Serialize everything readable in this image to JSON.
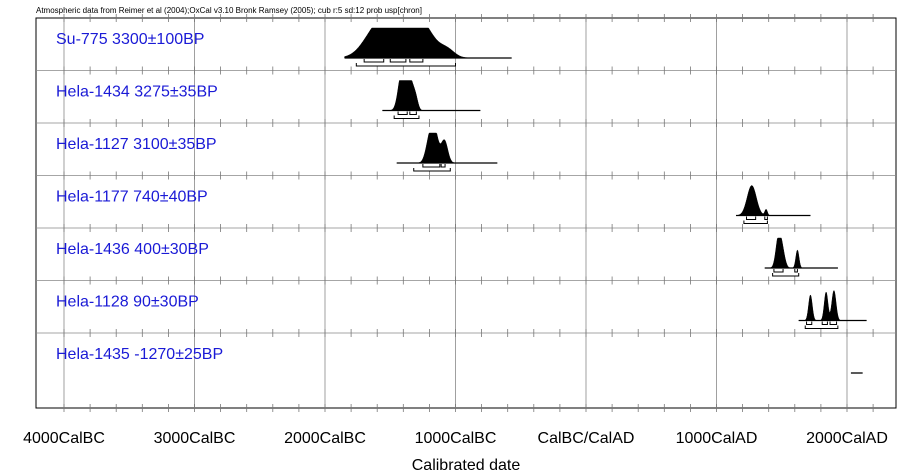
{
  "header": {
    "note": "Atmospheric data from Reimer et al (2004);OxCal v3.10 Bronk Ramsey (2005); cub r:5 sd:12 prob usp[chron]"
  },
  "chart_data": {
    "type": "multiplot",
    "title": "",
    "xlabel": "Calibrated date",
    "ylabel": "",
    "xlim": [
      -4000,
      2500
    ],
    "x_ticks": [
      {
        "value": -4000,
        "label": "4000CalBC"
      },
      {
        "value": -3000,
        "label": "3000CalBC"
      },
      {
        "value": -2000,
        "label": "2000CalBC"
      },
      {
        "value": -1000,
        "label": "1000CalBC"
      },
      {
        "value": 0,
        "label": "CalBC/CalAD"
      },
      {
        "value": 1000,
        "label": "1000CalAD"
      },
      {
        "value": 2000,
        "label": "2000CalAD"
      }
    ],
    "grid": true,
    "samples": [
      {
        "label": "Su-775  3300±100BP",
        "range": [
          -1850,
          -570
        ],
        "peaks": [
          {
            "center": -1630,
            "width": 95,
            "height": 0.5
          },
          {
            "center": -1500,
            "width": 120,
            "height": 0.75
          },
          {
            "center": -1400,
            "width": 120,
            "height": 1.0
          },
          {
            "center": -1250,
            "width": 100,
            "height": 0.75
          },
          {
            "center": -1060,
            "width": 55,
            "height": 0.22
          }
        ],
        "hpd_1sigma": [
          [
            -1700,
            -1550
          ],
          [
            -1500,
            -1380
          ],
          [
            -1350,
            -1250
          ]
        ],
        "hpd_2sigma": [
          [
            -1760,
            -1000
          ]
        ]
      },
      {
        "label": "Hela-1434  3275±35BP",
        "range": [
          -1560,
          -810
        ],
        "peaks": [
          {
            "center": -1420,
            "width": 25,
            "height": 0.55
          },
          {
            "center": -1395,
            "width": 30,
            "height": 1.0
          },
          {
            "center": -1345,
            "width": 25,
            "height": 0.85
          },
          {
            "center": -1305,
            "width": 18,
            "height": 0.35
          }
        ],
        "hpd_1sigma": [
          [
            -1440,
            -1370
          ],
          [
            -1350,
            -1300
          ]
        ],
        "hpd_2sigma": [
          [
            -1470,
            -1280
          ]
        ]
      },
      {
        "label": "Hela-1127  3100±35BP",
        "range": [
          -1450,
          -680
        ],
        "peaks": [
          {
            "center": -1200,
            "width": 28,
            "height": 0.7
          },
          {
            "center": -1160,
            "width": 28,
            "height": 1.0
          },
          {
            "center": -1085,
            "width": 25,
            "height": 0.75
          }
        ],
        "hpd_1sigma": [
          [
            -1250,
            -1120
          ],
          [
            -1110,
            -1080
          ]
        ],
        "hpd_2sigma": [
          [
            -1320,
            -1040
          ]
        ]
      },
      {
        "label": "Hela-1177  740±40BP",
        "range": [
          1150,
          1720
        ],
        "peaks": [
          {
            "center": 1270,
            "width": 35,
            "height": 1.0
          },
          {
            "center": 1380,
            "width": 10,
            "height": 0.2
          }
        ],
        "hpd_1sigma": [
          [
            1230,
            1300
          ],
          [
            1370,
            1390
          ]
        ],
        "hpd_2sigma": [
          [
            1210,
            1390
          ]
        ]
      },
      {
        "label": "Hela-1436  400±30BP",
        "range": [
          1370,
          1930
        ],
        "peaks": [
          {
            "center": 1475,
            "width": 20,
            "height": 1.0
          },
          {
            "center": 1505,
            "width": 20,
            "height": 0.5
          },
          {
            "center": 1620,
            "width": 12,
            "height": 0.6
          }
        ],
        "hpd_1sigma": [
          [
            1440,
            1510
          ],
          [
            1600,
            1620
          ]
        ],
        "hpd_2sigma": [
          [
            1430,
            1630
          ]
        ]
      },
      {
        "label": "Hela-1128  90±30BP",
        "range": [
          1630,
          2150
        ],
        "peaks": [
          {
            "center": 1720,
            "width": 14,
            "height": 0.85
          },
          {
            "center": 1840,
            "width": 14,
            "height": 0.95
          },
          {
            "center": 1900,
            "width": 16,
            "height": 1.0
          }
        ],
        "hpd_1sigma": [
          [
            1690,
            1730
          ],
          [
            1810,
            1850
          ],
          [
            1870,
            1920
          ]
        ],
        "hpd_2sigma": [
          [
            1680,
            1930
          ]
        ]
      },
      {
        "label": "Hela-1435  -1270±25BP",
        "range": [
          2030,
          2120
        ],
        "peaks": [],
        "hpd_1sigma": [],
        "hpd_2sigma": []
      }
    ]
  }
}
